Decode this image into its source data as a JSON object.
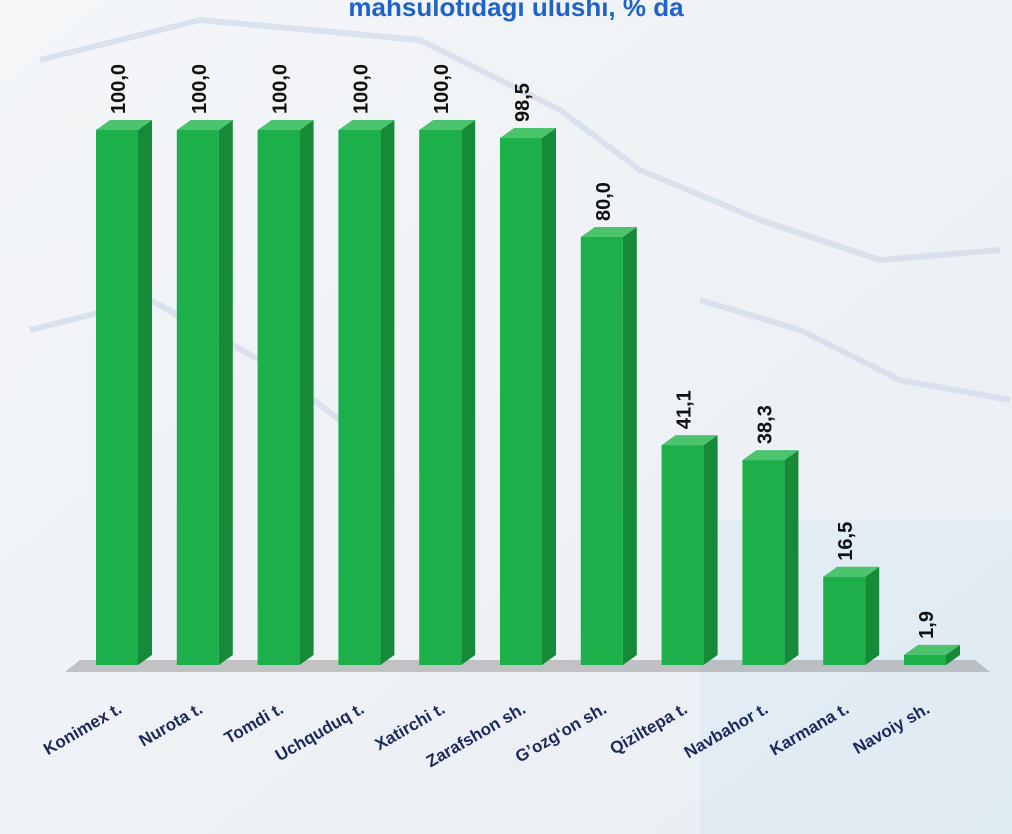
{
  "chart_data": {
    "type": "bar3d",
    "title": "mahsulotidagi ulushi, % da",
    "categories": [
      "Konimex t.",
      "Nurota t.",
      "Tomdi t.",
      "Uchquduq t.",
      "Xatirchi t.",
      "Zarafshon sh.",
      "G’ozg‘on sh.",
      "Qiziltepa t.",
      "Navbahor t.",
      "Karmana t.",
      "Navoiy sh."
    ],
    "values": [
      100.0,
      100.0,
      100.0,
      100.0,
      100.0,
      98.5,
      80.0,
      41.1,
      38.3,
      16.5,
      1.9
    ],
    "value_labels": [
      "100,0",
      "100,0",
      "100,0",
      "100,0",
      "100,0",
      "98,5",
      "80,0",
      "41,1",
      "38,3",
      "16,5",
      "1,9"
    ],
    "color": "#1db04a"
  }
}
